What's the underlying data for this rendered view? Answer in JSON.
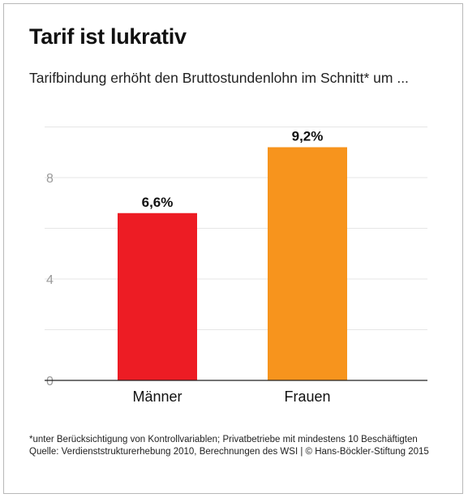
{
  "title": "Tarif ist lukrativ",
  "subtitle": "Tarifbindung erhöht den Bruttostundenlohn im Schnitt* um ...",
  "footnote": {
    "note": "*unter Berücksichtigung von Kontrollvariablen; Privatbetriebe mit mindestens 10 Beschäftigten",
    "source": "Quelle: Verdienststrukturerhebung 2010, Berechnungen des WSI | © Hans-Böckler-Stiftung 2015"
  },
  "chart_data": {
    "type": "bar",
    "categories": [
      "Männer",
      "Frauen"
    ],
    "values": [
      6.6,
      9.2
    ],
    "value_labels": [
      "6,6%",
      "9,2%"
    ],
    "colors": [
      "#ed1c24",
      "#f7941d"
    ],
    "yticks": [
      0,
      4,
      8
    ],
    "ylim": [
      0,
      10
    ],
    "grid": true,
    "title": "",
    "xlabel": "",
    "ylabel": ""
  }
}
